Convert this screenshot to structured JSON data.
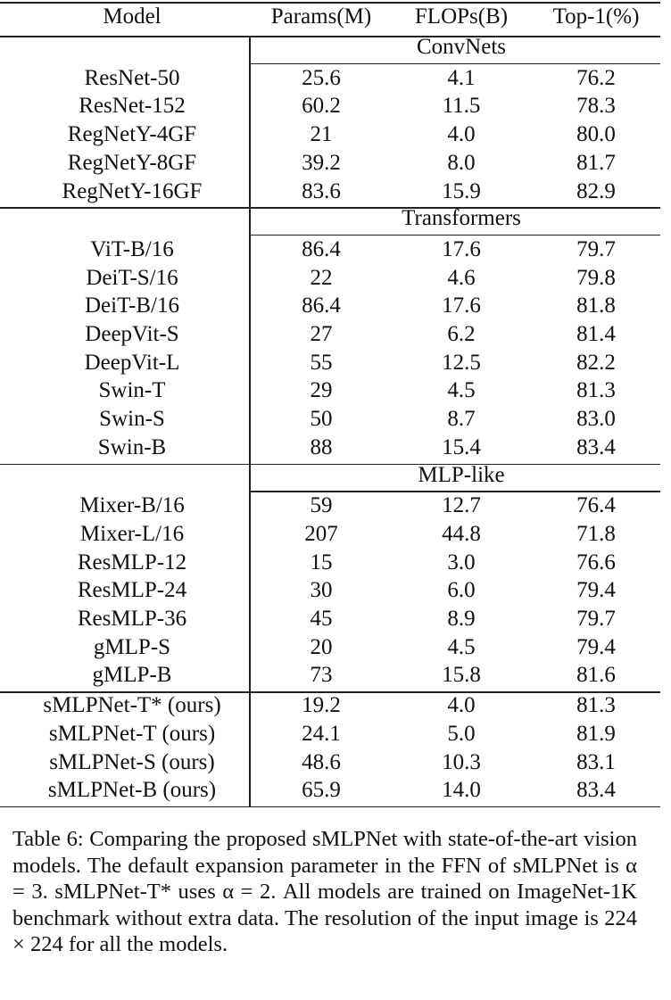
{
  "table": {
    "header": [
      "Model",
      "Params(M)",
      "FLOPs(B)",
      "Top-1(%)"
    ],
    "groups": [
      {
        "label": "ConvNets",
        "rows": [
          [
            "ResNet-50",
            "25.6",
            "4.1",
            "76.2"
          ],
          [
            "ResNet-152",
            "60.2",
            "11.5",
            "78.3"
          ],
          [
            "RegNetY-4GF",
            "21",
            "4.0",
            "80.0"
          ],
          [
            "RegNetY-8GF",
            "39.2",
            "8.0",
            "81.7"
          ],
          [
            "RegNetY-16GF",
            "83.6",
            "15.9",
            "82.9"
          ]
        ]
      },
      {
        "label": "Transformers",
        "rows": [
          [
            "ViT-B/16",
            "86.4",
            "17.6",
            "79.7"
          ],
          [
            "DeiT-S/16",
            "22",
            "4.6",
            "79.8"
          ],
          [
            "DeiT-B/16",
            "86.4",
            "17.6",
            "81.8"
          ],
          [
            "DeepVit-S",
            "27",
            "6.2",
            "81.4"
          ],
          [
            "DeepVit-L",
            "55",
            "12.5",
            "82.2"
          ],
          [
            "Swin-T",
            "29",
            "4.5",
            "81.3"
          ],
          [
            "Swin-S",
            "50",
            "8.7",
            "83.0"
          ],
          [
            "Swin-B",
            "88",
            "15.4",
            "83.4"
          ]
        ]
      },
      {
        "label": "MLP-like",
        "rows": [
          [
            "Mixer-B/16",
            "59",
            "12.7",
            "76.4"
          ],
          [
            "Mixer-L/16",
            "207",
            "44.8",
            "71.8"
          ],
          [
            "ResMLP-12",
            "15",
            "3.0",
            "76.6"
          ],
          [
            "ResMLP-24",
            "30",
            "6.0",
            "79.4"
          ],
          [
            "ResMLP-36",
            "45",
            "8.9",
            "79.7"
          ],
          [
            "gMLP-S",
            "20",
            "4.5",
            "79.4"
          ],
          [
            "gMLP-B",
            "73",
            "15.8",
            "81.6"
          ]
        ]
      },
      {
        "rows": [
          [
            "sMLPNet-T* (ours)",
            "19.2",
            "4.0",
            "81.3"
          ],
          [
            "sMLPNet-T (ours)",
            "24.1",
            "5.0",
            "81.9"
          ],
          [
            "sMLPNet-S (ours)",
            "48.6",
            "10.3",
            "83.1"
          ],
          [
            "sMLPNet-B (ours)",
            "65.9",
            "14.0",
            "83.4"
          ]
        ]
      }
    ]
  },
  "caption": "Table 6: Comparing the proposed sMLPNet with state-of-the-art vision models. The default expansion parameter in the FFN of sMLPNet is α = 3. sMLPNet-T* uses α = 2. All models are trained on ImageNet-1K benchmark without extra data. The resolution of the input image is 224 × 224 for all the models."
}
